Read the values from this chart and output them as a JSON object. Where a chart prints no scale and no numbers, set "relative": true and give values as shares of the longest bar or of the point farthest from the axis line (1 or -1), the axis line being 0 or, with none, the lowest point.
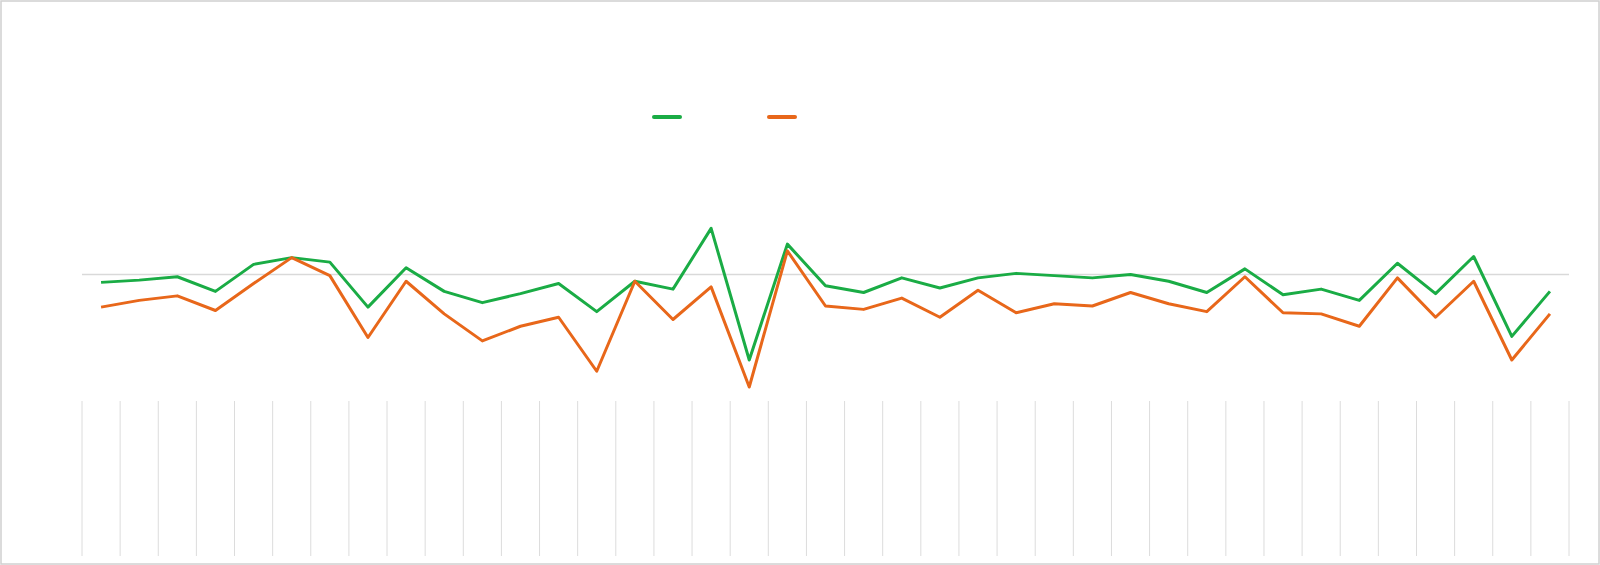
{
  "chart_data": {
    "type": "line",
    "relative": true,
    "marker": "none",
    "line_style": "solid",
    "categories": [
      null,
      null,
      null,
      null,
      null,
      null,
      null,
      null,
      null,
      null,
      null,
      null,
      null,
      null,
      null,
      null,
      null,
      null,
      null,
      null,
      null,
      null,
      null,
      null,
      null,
      null,
      null,
      null,
      null,
      null,
      null,
      null,
      null,
      null,
      null,
      null,
      null,
      null,
      null
    ],
    "series": [
      {
        "color": "#1aac45",
        "values": [
          -0.07,
          -0.05,
          -0.02,
          -0.15,
          0.09,
          0.15,
          0.11,
          -0.29,
          0.06,
          -0.15,
          -0.25,
          -0.17,
          -0.08,
          -0.33,
          -0.06,
          -0.13,
          0.41,
          -0.76,
          0.27,
          -0.1,
          -0.16,
          -0.03,
          -0.12,
          -0.03,
          0.01,
          -0.01,
          -0.03,
          0,
          -0.06,
          -0.16,
          0.05,
          -0.18,
          -0.13,
          -0.23,
          0.1,
          -0.17,
          0.16,
          -0.55,
          -0.15
        ]
      },
      {
        "color": "#e8671a",
        "values": [
          -0.29,
          -0.23,
          -0.19,
          -0.32,
          -0.08,
          0.15,
          -0.01,
          -0.56,
          -0.06,
          -0.35,
          -0.59,
          -0.46,
          -0.38,
          -0.86,
          -0.06,
          -0.4,
          -0.11,
          -1,
          0.21,
          -0.28,
          -0.31,
          -0.21,
          -0.38,
          -0.14,
          -0.34,
          -0.26,
          -0.28,
          -0.16,
          -0.26,
          -0.33,
          -0.02,
          -0.34,
          -0.35,
          -0.46,
          -0.03,
          -0.38,
          -0.06,
          -0.76,
          -0.35
        ]
      }
    ]
  }
}
